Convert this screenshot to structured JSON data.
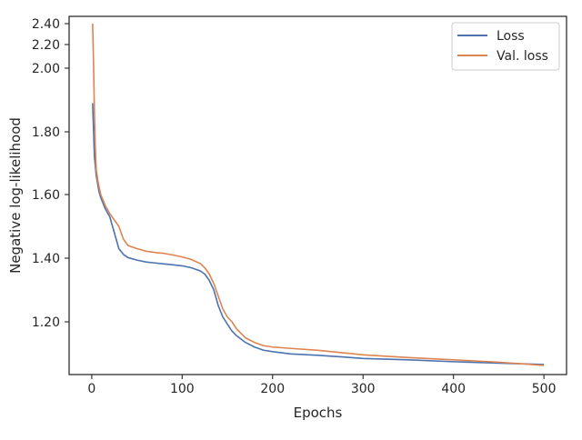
{
  "chart_data": {
    "type": "line",
    "title": "",
    "xlabel": "Epochs",
    "ylabel": "Negative log-likelihood",
    "xlim": [
      -25,
      525
    ],
    "ylim": [
      1.085,
      2.425
    ],
    "y_scale_note": "nonlinear",
    "xticks": [
      0,
      100,
      200,
      300,
      400,
      500
    ],
    "yticks": [
      1.2,
      1.4,
      1.6,
      1.8,
      2.0,
      2.2,
      2.4
    ],
    "ytick_labels": [
      "1.20",
      "1.40",
      "1.60",
      "1.80",
      "2.00",
      "2.20",
      "2.40"
    ],
    "grid": false,
    "legend_position": "top-right",
    "series": [
      {
        "name": "Loss",
        "color": "#4c72b0",
        "x": [
          1,
          3,
          5,
          8,
          10,
          15,
          20,
          25,
          30,
          35,
          40,
          50,
          60,
          70,
          80,
          90,
          100,
          110,
          120,
          125,
          130,
          135,
          140,
          145,
          150,
          155,
          160,
          170,
          180,
          190,
          200,
          220,
          250,
          280,
          300,
          350,
          400,
          450,
          500
        ],
        "y": [
          1.89,
          1.72,
          1.66,
          1.61,
          1.59,
          1.555,
          1.53,
          1.48,
          1.43,
          1.412,
          1.402,
          1.394,
          1.388,
          1.385,
          1.382,
          1.379,
          1.376,
          1.37,
          1.36,
          1.35,
          1.33,
          1.3,
          1.25,
          1.215,
          1.195,
          1.18,
          1.17,
          1.155,
          1.145,
          1.138,
          1.135,
          1.13,
          1.127,
          1.123,
          1.12,
          1.117,
          1.113,
          1.11,
          1.107
        ]
      },
      {
        "name": "Val. loss",
        "color": "#dd8452",
        "x": [
          1,
          2,
          3,
          4,
          5,
          7,
          10,
          15,
          20,
          25,
          30,
          35,
          40,
          50,
          60,
          70,
          80,
          90,
          100,
          110,
          120,
          125,
          130,
          135,
          140,
          145,
          150,
          155,
          160,
          170,
          180,
          190,
          200,
          220,
          250,
          280,
          300,
          350,
          400,
          450,
          500
        ],
        "y": [
          2.4,
          2.05,
          1.86,
          1.75,
          1.68,
          1.64,
          1.6,
          1.565,
          1.54,
          1.52,
          1.5,
          1.46,
          1.44,
          1.43,
          1.422,
          1.418,
          1.415,
          1.41,
          1.404,
          1.396,
          1.383,
          1.37,
          1.35,
          1.32,
          1.28,
          1.24,
          1.215,
          1.2,
          1.185,
          1.165,
          1.155,
          1.148,
          1.145,
          1.142,
          1.138,
          1.132,
          1.128,
          1.122,
          1.117,
          1.112,
          1.105
        ]
      }
    ]
  }
}
